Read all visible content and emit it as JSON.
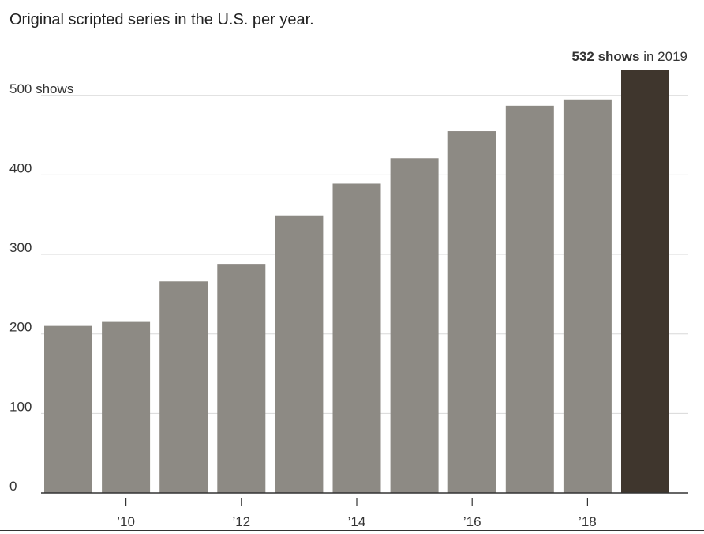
{
  "chart_data": {
    "type": "bar",
    "title": "Original scripted series in the U.S. per year.",
    "categories": [
      "2009",
      "2010",
      "2011",
      "2012",
      "2013",
      "2014",
      "2015",
      "2016",
      "2017",
      "2018",
      "2019"
    ],
    "values": [
      210,
      216,
      266,
      288,
      349,
      389,
      421,
      455,
      487,
      495,
      532
    ],
    "highlight_index": 10,
    "x_tick_labels": [
      "’10",
      "’12",
      "’14",
      "’16",
      "’18"
    ],
    "x_tick_categories": [
      "2010",
      "2012",
      "2014",
      "2016",
      "2018"
    ],
    "y_ticks": [
      0,
      100,
      200,
      300,
      400,
      500
    ],
    "y_tick_labels": [
      "0",
      "100",
      "200",
      "300",
      "400",
      "500 shows"
    ],
    "ylim": [
      0,
      540
    ],
    "grid": true,
    "annotation": {
      "bold": "532 shows",
      "rest": " in 2019"
    },
    "colors": {
      "bar": "#8d8a84",
      "highlight": "#3f362d",
      "grid": "#d8d8d8",
      "axis": "#333333"
    }
  }
}
